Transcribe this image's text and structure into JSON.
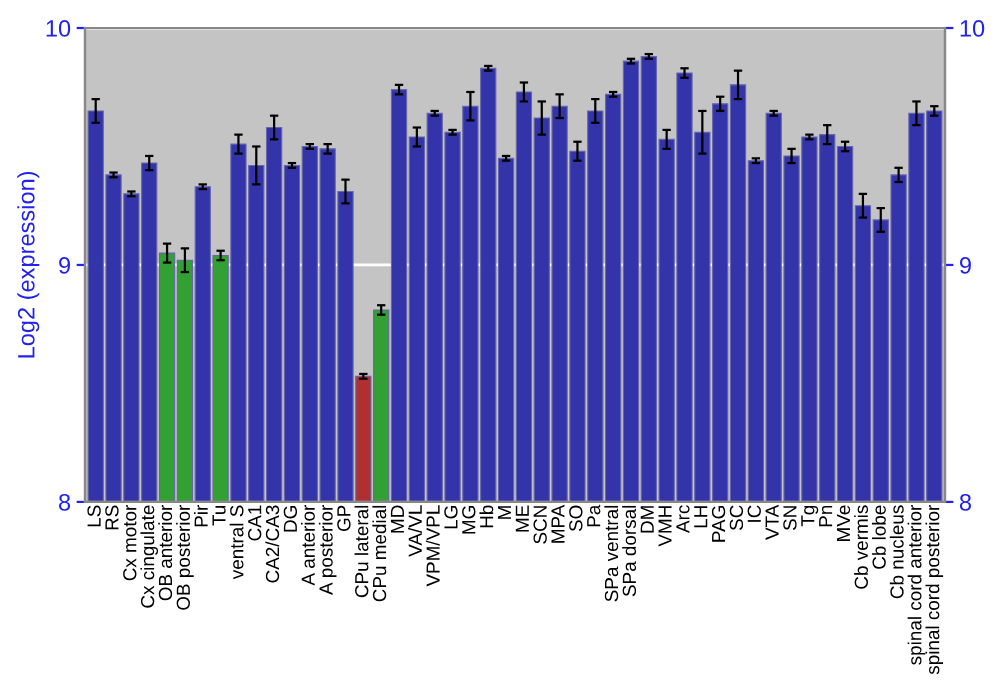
{
  "chart_data": {
    "type": "bar",
    "ylabel": "Log2 (expression)",
    "categories": [
      "LS",
      "RS",
      "Cx motor",
      "Cx cingulate",
      "OB anterior",
      "OB posterior",
      "Pir",
      "Tu",
      "ventral S",
      "CA1",
      "CA2/CA3",
      "DG",
      "A anterior",
      "A posterior",
      "GP",
      "CPu lateral",
      "CPu medial",
      "MD",
      "VA/VL",
      "VPM/VPL",
      "LG",
      "MG",
      "Hb",
      "M",
      "ME",
      "SCN",
      "MPA",
      "SO",
      "Pa",
      "SPa ventral",
      "SPa dorsal",
      "DM",
      "VMH",
      "Arc",
      "LH",
      "PAG",
      "SC",
      "IC",
      "VTA",
      "SN",
      "Tg",
      "Pn",
      "MVe",
      "Cb vermis",
      "Cb lobe",
      "Cb nucleus",
      "spinal cord anterior",
      "spinal cord posterior"
    ],
    "values": [
      9.65,
      9.38,
      9.3,
      9.43,
      9.05,
      9.02,
      9.33,
      9.04,
      9.51,
      9.42,
      9.58,
      9.42,
      9.5,
      9.49,
      9.31,
      8.53,
      8.81,
      9.74,
      9.54,
      9.64,
      9.56,
      9.67,
      9.83,
      9.45,
      9.73,
      9.62,
      9.67,
      9.48,
      9.65,
      9.72,
      9.86,
      9.88,
      9.53,
      9.81,
      9.56,
      9.68,
      9.76,
      9.44,
      9.64,
      9.46,
      9.54,
      9.55,
      9.5,
      9.25,
      9.19,
      9.38,
      9.64,
      9.65
    ],
    "errors": [
      0.05,
      0.01,
      0.01,
      0.03,
      0.04,
      0.05,
      0.01,
      0.02,
      0.04,
      0.08,
      0.05,
      0.01,
      0.01,
      0.02,
      0.05,
      0.01,
      0.02,
      0.02,
      0.04,
      0.01,
      0.01,
      0.06,
      0.01,
      0.01,
      0.04,
      0.07,
      0.05,
      0.04,
      0.05,
      0.01,
      0.01,
      0.01,
      0.04,
      0.02,
      0.09,
      0.03,
      0.06,
      0.01,
      0.01,
      0.03,
      0.01,
      0.04,
      0.02,
      0.05,
      0.05,
      0.03,
      0.05,
      0.02
    ],
    "colors": [
      "#3333aa",
      "#3333aa",
      "#3333aa",
      "#3333aa",
      "#33a033",
      "#33a033",
      "#3333aa",
      "#33a033",
      "#3333aa",
      "#3333aa",
      "#3333aa",
      "#3333aa",
      "#3333aa",
      "#3333aa",
      "#3333aa",
      "#b03030",
      "#33a033",
      "#3333aa",
      "#3333aa",
      "#3333aa",
      "#3333aa",
      "#3333aa",
      "#3333aa",
      "#3333aa",
      "#3333aa",
      "#3333aa",
      "#3333aa",
      "#3333aa",
      "#3333aa",
      "#3333aa",
      "#3333aa",
      "#3333aa",
      "#3333aa",
      "#3333aa",
      "#3333aa",
      "#3333aa",
      "#3333aa",
      "#3333aa",
      "#3333aa",
      "#3333aa",
      "#3333aa",
      "#3333aa",
      "#3333aa",
      "#3333aa",
      "#3333aa",
      "#3333aa",
      "#3333aa",
      "#3333aa"
    ],
    "ylim": [
      8,
      10
    ],
    "yticks": [
      8,
      9,
      10
    ],
    "y2lim": [
      8,
      10
    ],
    "y2ticks": [
      8,
      9,
      10
    ],
    "grid": "y"
  }
}
